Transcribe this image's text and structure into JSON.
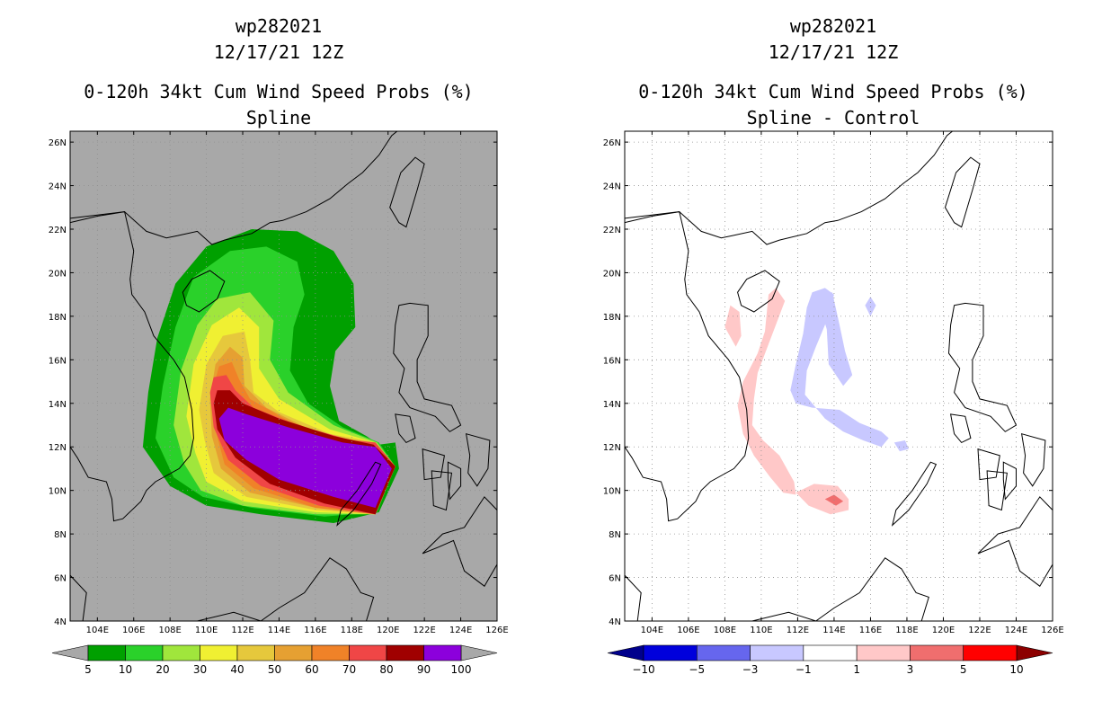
{
  "chart_data": [
    {
      "type": "contour-map",
      "storm_id": "wp282021",
      "datetime": "12/17/21 12Z",
      "title": "0-120h 34kt Cum Wind Speed Probs (%)",
      "subtitle": "Spline",
      "units": "%",
      "xlim": [
        102.5,
        126
      ],
      "ylim": [
        4,
        26.5
      ],
      "x_ticks": [
        104,
        106,
        108,
        110,
        112,
        114,
        116,
        118,
        120,
        122,
        124,
        126
      ],
      "y_ticks": [
        4,
        6,
        8,
        10,
        12,
        14,
        16,
        18,
        20,
        22,
        24,
        26
      ],
      "grid": "dotted",
      "background": "#a8a8a8",
      "colorbar": {
        "levels": [
          "5",
          "10",
          "20",
          "30",
          "40",
          "50",
          "60",
          "70",
          "80",
          "90",
          "100"
        ],
        "colors": [
          "#00a000",
          "#2ad12a",
          "#a0e63c",
          "#f0f032",
          "#e6c83c",
          "#e6a032",
          "#f08228",
          "#f04646",
          "#a00000",
          "#8c00dc"
        ],
        "under_color": "#a8a8a8",
        "over_color": "#a8a8a8"
      },
      "contours": [
        {
          "level": 5,
          "color": "#00a000",
          "points": [
            [
              106.5,
              12
            ],
            [
              106.8,
              14.5
            ],
            [
              107.3,
              17
            ],
            [
              108.3,
              19.5
            ],
            [
              110,
              21.2
            ],
            [
              112.5,
              22
            ],
            [
              115,
              21.9
            ],
            [
              117,
              21
            ],
            [
              118.1,
              19.5
            ],
            [
              118.2,
              17.5
            ],
            [
              117.1,
              16.4
            ],
            [
              116.8,
              14.8
            ],
            [
              117.3,
              13.2
            ],
            [
              118.8,
              12.5
            ],
            [
              119.5,
              12.1
            ],
            [
              120.4,
              12.2
            ],
            [
              120.6,
              11
            ],
            [
              119.5,
              9
            ],
            [
              117,
              8.5
            ],
            [
              113,
              8.9
            ],
            [
              110,
              9.3
            ],
            [
              108,
              10.2
            ]
          ]
        },
        {
          "level": 10,
          "color": "#2ad12a",
          "points": [
            [
              107.2,
              12.4
            ],
            [
              107.6,
              14.8
            ],
            [
              108.3,
              17.5
            ],
            [
              109.3,
              19.8
            ],
            [
              111.3,
              21
            ],
            [
              113.3,
              21.2
            ],
            [
              115,
              20.5
            ],
            [
              115.4,
              19
            ],
            [
              114.8,
              17.5
            ],
            [
              114.6,
              15.5
            ],
            [
              115.6,
              14
            ],
            [
              117.5,
              12.9
            ],
            [
              119.5,
              12.2
            ],
            [
              120.4,
              11.1
            ],
            [
              119.4,
              9
            ],
            [
              116.5,
              8.8
            ],
            [
              112.5,
              9.2
            ],
            [
              109.8,
              9.7
            ],
            [
              108.2,
              10.6
            ]
          ]
        },
        {
          "level": 20,
          "color": "#a0e63c",
          "points": [
            [
              108.2,
              13
            ],
            [
              108.6,
              15.5
            ],
            [
              109.5,
              17.6
            ],
            [
              110.6,
              18.8
            ],
            [
              112.4,
              19.1
            ],
            [
              113.7,
              17.8
            ],
            [
              113.5,
              16
            ],
            [
              114.5,
              14.5
            ],
            [
              117,
              13
            ],
            [
              119.4,
              12.2
            ],
            [
              120.4,
              11.1
            ],
            [
              119.3,
              8.9
            ],
            [
              116,
              8.9
            ],
            [
              112,
              9.3
            ],
            [
              109.7,
              10
            ],
            [
              108.8,
              11.2
            ]
          ]
        },
        {
          "level": 30,
          "color": "#f0f032",
          "points": [
            [
              108.9,
              13.4
            ],
            [
              109.3,
              15.8
            ],
            [
              110.3,
              17.6
            ],
            [
              111.8,
              18.4
            ],
            [
              112.9,
              17.5
            ],
            [
              112.9,
              15.6
            ],
            [
              114,
              14.2
            ],
            [
              116.8,
              12.8
            ],
            [
              119.3,
              12.2
            ],
            [
              120.4,
              11.1
            ],
            [
              119.3,
              8.9
            ],
            [
              116,
              9
            ],
            [
              112,
              9.5
            ],
            [
              110,
              10.4
            ],
            [
              109.4,
              11.7
            ]
          ]
        },
        {
          "level": 40,
          "color": "#e6c83c",
          "points": [
            [
              109.6,
              13.7
            ],
            [
              110,
              15.8
            ],
            [
              110.9,
              17.1
            ],
            [
              112.1,
              17.3
            ],
            [
              112.4,
              16
            ],
            [
              112.6,
              14.5
            ],
            [
              114,
              13.6
            ],
            [
              116.8,
              12.6
            ],
            [
              119.3,
              12.2
            ],
            [
              120.4,
              11.1
            ],
            [
              119.3,
              8.9
            ],
            [
              116,
              9.1
            ],
            [
              112.2,
              9.7
            ],
            [
              110.4,
              10.8
            ],
            [
              109.9,
              12.3
            ]
          ]
        },
        {
          "level": 50,
          "color": "#e6a032",
          "points": [
            [
              110.2,
              14.2
            ],
            [
              110.5,
              15.8
            ],
            [
              111.3,
              16.6
            ],
            [
              112,
              16.1
            ],
            [
              112.1,
              14.8
            ],
            [
              113.3,
              13.8
            ],
            [
              116.4,
              12.5
            ],
            [
              119.3,
              12.2
            ],
            [
              120.4,
              11.1
            ],
            [
              119.3,
              8.9
            ],
            [
              116,
              9.2
            ],
            [
              112.4,
              9.9
            ],
            [
              110.8,
              11
            ],
            [
              110.3,
              12.5
            ]
          ]
        },
        {
          "level": 60,
          "color": "#f08228",
          "points": [
            [
              110.4,
              14.8
            ],
            [
              110.7,
              15.7
            ],
            [
              111.4,
              15.9
            ],
            [
              111.8,
              15.1
            ],
            [
              112.4,
              14.2
            ],
            [
              114.5,
              13.2
            ],
            [
              117.5,
              12.3
            ],
            [
              119.3,
              12.2
            ],
            [
              120.4,
              11.1
            ],
            [
              119.3,
              8.9
            ],
            [
              116,
              9.2
            ],
            [
              112.6,
              10.1
            ],
            [
              111,
              11.2
            ],
            [
              110.5,
              12.8
            ]
          ]
        },
        {
          "level": 70,
          "color": "#f04646",
          "points": [
            [
              110.2,
              14.5
            ],
            [
              110.4,
              15.2
            ],
            [
              111.1,
              15.3
            ],
            [
              111.6,
              14.6
            ],
            [
              112.6,
              13.8
            ],
            [
              115,
              13
            ],
            [
              118,
              12.3
            ],
            [
              119.3,
              12.2
            ],
            [
              120.4,
              11.1
            ],
            [
              119.3,
              8.9
            ],
            [
              116.2,
              9.3
            ],
            [
              113,
              10.2
            ],
            [
              111.2,
              11.4
            ],
            [
              110.4,
              12.9
            ]
          ]
        },
        {
          "level": 80,
          "color": "#a00000",
          "points": [
            [
              110.4,
              14
            ],
            [
              110.6,
              14.6
            ],
            [
              111.3,
              14.6
            ],
            [
              112,
              14
            ],
            [
              114,
              13.3
            ],
            [
              117,
              12.5
            ],
            [
              119.2,
              12.1
            ],
            [
              120.4,
              11.1
            ],
            [
              119.3,
              8.9
            ],
            [
              116.5,
              9.4
            ],
            [
              113.5,
              10.3
            ],
            [
              111.6,
              11.5
            ],
            [
              110.6,
              12.8
            ]
          ]
        },
        {
          "level": 90,
          "color": "#8c00dc",
          "points": [
            [
              110.7,
              13.3
            ],
            [
              111.2,
              13.8
            ],
            [
              112.2,
              13.5
            ],
            [
              114.5,
              12.9
            ],
            [
              117.5,
              12.2
            ],
            [
              119.3,
              12
            ],
            [
              120.2,
              11
            ],
            [
              119.3,
              9.2
            ],
            [
              117,
              9.7
            ],
            [
              114,
              10.5
            ],
            [
              112.2,
              11.4
            ],
            [
              111,
              12.3
            ]
          ]
        }
      ],
      "colorbar_label_tick_value": null
    },
    {
      "type": "contour-map",
      "storm_id": "wp282021",
      "datetime": "12/17/21 12Z",
      "title": "0-120h 34kt Cum Wind Speed Probs (%)",
      "subtitle": "Spline - Control",
      "units": "%",
      "xlim": [
        102.5,
        126
      ],
      "ylim": [
        4,
        26.5
      ],
      "x_ticks": [
        104,
        106,
        108,
        110,
        112,
        114,
        116,
        118,
        120,
        122,
        124,
        126
      ],
      "y_ticks": [
        4,
        6,
        8,
        10,
        12,
        14,
        16,
        18,
        20,
        22,
        24,
        26
      ],
      "grid": "dotted",
      "background": "#ffffff",
      "colorbar": {
        "levels": [
          "-10",
          "-5",
          "-3",
          "-1",
          "1",
          "3",
          "5",
          "10"
        ],
        "colors": [
          "#0000dc",
          "#6666ee",
          "#c8c8ff",
          "#ffffff",
          "#ffc8c8",
          "#f06e6e",
          "#ff0000"
        ],
        "under_color": "#00008c",
        "over_color": "#8c0000"
      },
      "contours": [
        {
          "level": "1 to 3",
          "color": "#ffc8c8",
          "points": [
            [
              109,
              15
            ],
            [
              109.8,
              16.3
            ],
            [
              110.2,
              17.3
            ],
            [
              110.4,
              19
            ],
            [
              110.8,
              19.3
            ],
            [
              111.3,
              18.7
            ],
            [
              110.8,
              17.6
            ],
            [
              110.3,
              16.5
            ],
            [
              109.8,
              15.4
            ],
            [
              109.6,
              14.2
            ],
            [
              109.5,
              13
            ],
            [
              110.1,
              12.3
            ],
            [
              111,
              11.6
            ],
            [
              111.8,
              10.4
            ],
            [
              111.9,
              9.8
            ],
            [
              111.2,
              9.9
            ],
            [
              110.5,
              10.6
            ],
            [
              109.6,
              11.6
            ],
            [
              109,
              12.6
            ],
            [
              108.7,
              13.9
            ]
          ]
        },
        {
          "level": "1 to 3",
          "color": "#ffc8c8",
          "points": [
            [
              108,
              17.5
            ],
            [
              108.3,
              18.5
            ],
            [
              108.8,
              18.2
            ],
            [
              108.9,
              17.1
            ],
            [
              108.6,
              16.6
            ]
          ]
        },
        {
          "level": "1 to 3",
          "color": "#ffc8c8",
          "points": [
            [
              111.9,
              9.9
            ],
            [
              112.9,
              10.3
            ],
            [
              114.2,
              10.2
            ],
            [
              114.8,
              9.6
            ],
            [
              114.8,
              9.1
            ],
            [
              113.8,
              8.9
            ],
            [
              112.6,
              9.3
            ]
          ]
        },
        {
          "level": "3 to 5",
          "color": "#f06e6e",
          "points": [
            [
              113.5,
              9.6
            ],
            [
              114,
              9.8
            ],
            [
              114.5,
              9.5
            ],
            [
              114.1,
              9.3
            ]
          ]
        },
        {
          "level": "-3 to -1",
          "color": "#c8c8ff",
          "points": [
            [
              112.3,
              17.2
            ],
            [
              111.9,
              15.8
            ],
            [
              111.6,
              14.6
            ],
            [
              111.9,
              14
            ],
            [
              112.8,
              13.8
            ],
            [
              114.3,
              13.7
            ],
            [
              115.4,
              13.1
            ],
            [
              116.6,
              12.7
            ],
            [
              117,
              12.4
            ],
            [
              116.6,
              12
            ],
            [
              115.6,
              12.3
            ],
            [
              114.5,
              12.7
            ],
            [
              113.5,
              13.3
            ],
            [
              112.4,
              14.4
            ],
            [
              112.5,
              15.5
            ],
            [
              113,
              16.6
            ],
            [
              113.6,
              17.8
            ],
            [
              114,
              19
            ],
            [
              113.5,
              19.3
            ],
            [
              112.8,
              19.1
            ],
            [
              112.5,
              18.4
            ]
          ]
        },
        {
          "level": "-3 to -1",
          "color": "#c8c8ff",
          "points": [
            [
              113.1,
              18.8
            ],
            [
              113.9,
              19.1
            ],
            [
              114.3,
              17.6
            ],
            [
              114.6,
              16.4
            ],
            [
              115,
              15.3
            ],
            [
              114.5,
              14.8
            ],
            [
              113.7,
              15.8
            ],
            [
              113.6,
              17.4
            ]
          ]
        },
        {
          "level": "-3 to -1",
          "color": "#c8c8ff",
          "points": [
            [
              115.7,
              18.5
            ],
            [
              116,
              18.9
            ],
            [
              116.3,
              18.5
            ],
            [
              116,
              18
            ]
          ]
        },
        {
          "level": "-3 to -1",
          "color": "#c8c8ff",
          "points": [
            [
              117.3,
              12.2
            ],
            [
              117.9,
              12.3
            ],
            [
              118.1,
              11.9
            ],
            [
              117.6,
              11.8
            ]
          ]
        }
      ]
    }
  ]
}
